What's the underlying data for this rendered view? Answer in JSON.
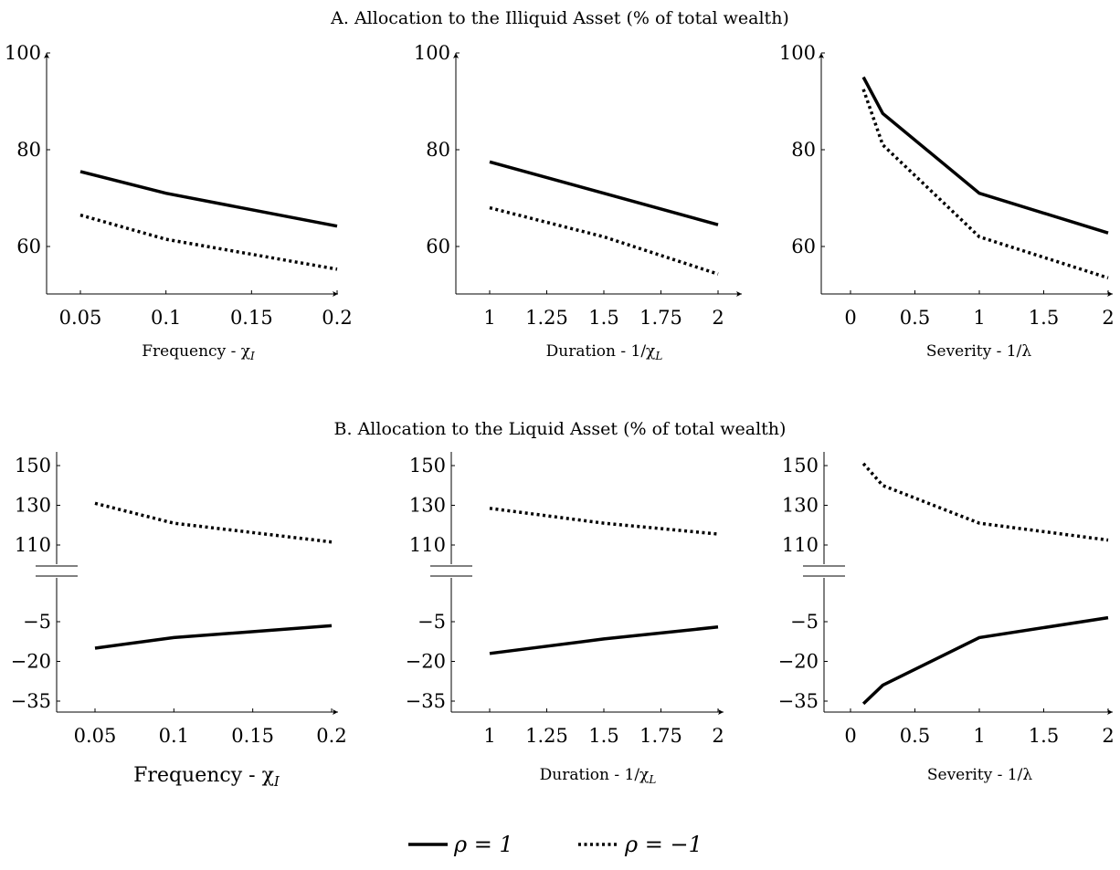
{
  "panels": {
    "A": {
      "title": "A. Allocation to the Illiquid Asset (% of total wealth)"
    },
    "B": {
      "title": "B. Allocation to the Liquid Asset (% of total wealth)"
    }
  },
  "legend": {
    "solid_label": "ρ = 1",
    "dotted_label": "ρ = −1"
  },
  "colors": {
    "line": "#000000",
    "background": "#ffffff"
  },
  "chart_data": [
    {
      "type": "line",
      "panel": "A",
      "xlabel": "Frequency - χI",
      "xlim": [
        0.05,
        0.2
      ],
      "ylim": [
        50,
        100
      ],
      "xticks": [
        0.05,
        0.1,
        0.15,
        0.2
      ],
      "xtick_labels": [
        "0.05",
        "0.1",
        "0.15",
        "0.2"
      ],
      "yticks": [
        60,
        80,
        100
      ],
      "ytick_labels": [
        "60",
        "80",
        "100"
      ],
      "series": [
        {
          "name": "ρ = 1",
          "style": "solid",
          "x": [
            0.05,
            0.1,
            0.2
          ],
          "y": [
            75.5,
            71,
            64.2
          ]
        },
        {
          "name": "ρ = −1",
          "style": "dotted",
          "x": [
            0.05,
            0.1,
            0.2
          ],
          "y": [
            66.5,
            61.5,
            55.3
          ]
        }
      ]
    },
    {
      "type": "line",
      "panel": "A",
      "xlabel": "Duration - 1/χL",
      "xlim": [
        0.9,
        2.1
      ],
      "ylim": [
        50,
        100
      ],
      "xticks": [
        1,
        1.25,
        1.5,
        1.75,
        2
      ],
      "xtick_labels": [
        "1",
        "1.25",
        "1.5",
        "1.75",
        "2"
      ],
      "yticks": [
        60,
        80,
        100
      ],
      "ytick_labels": [
        "60",
        "80",
        "100"
      ],
      "series": [
        {
          "name": "ρ = 1",
          "style": "solid",
          "x": [
            1,
            1.5,
            2
          ],
          "y": [
            77.5,
            71,
            64.5
          ]
        },
        {
          "name": "ρ = −1",
          "style": "dotted",
          "x": [
            1,
            1.5,
            2
          ],
          "y": [
            68,
            62,
            54.3
          ]
        }
      ]
    },
    {
      "type": "line",
      "panel": "A",
      "xlabel": "Severity - 1/λ",
      "xlim": [
        0,
        2
      ],
      "ylim": [
        50,
        100
      ],
      "xticks": [
        0,
        0.5,
        1,
        1.5,
        2
      ],
      "xtick_labels": [
        "0",
        "0.5",
        "1",
        "1.5",
        "2"
      ],
      "yticks": [
        60,
        80,
        100
      ],
      "ytick_labels": [
        "60",
        "80",
        "100"
      ],
      "series": [
        {
          "name": "ρ = 1",
          "style": "solid",
          "x": [
            0.1,
            0.25,
            1,
            2
          ],
          "y": [
            95,
            87.5,
            71,
            62.8
          ]
        },
        {
          "name": "ρ = −1",
          "style": "dotted",
          "x": [
            0.1,
            0.25,
            1,
            2
          ],
          "y": [
            92.5,
            81,
            62,
            53.5
          ]
        }
      ]
    },
    {
      "type": "line",
      "panel": "B",
      "xlabel": "Frequency - χI",
      "xlim": [
        0.05,
        0.2
      ],
      "axis_break": {
        "between": [
          -5,
          110
        ]
      },
      "yticks": [
        150,
        130,
        110,
        -5,
        -20,
        -35
      ],
      "ytick_labels": [
        "150",
        "130",
        "110",
        "−5",
        "−20",
        "−35"
      ],
      "xticks": [
        0.05,
        0.1,
        0.15,
        0.2
      ],
      "xtick_labels": [
        "0.05",
        "0.1",
        "0.15",
        "0.2"
      ],
      "series": [
        {
          "name": "ρ = 1",
          "style": "solid",
          "x": [
            0.05,
            0.1,
            0.2
          ],
          "y": [
            -15,
            -11,
            -6.5
          ]
        },
        {
          "name": "ρ = −1",
          "style": "dotted",
          "x": [
            0.05,
            0.1,
            0.2
          ],
          "y": [
            131,
            121,
            111.5
          ]
        }
      ]
    },
    {
      "type": "line",
      "panel": "B",
      "xlabel": "Duration - 1/χL",
      "xlim": [
        0.9,
        2.1
      ],
      "axis_break": {
        "between": [
          -5,
          110
        ]
      },
      "yticks": [
        150,
        130,
        110,
        -5,
        -20,
        -35
      ],
      "ytick_labels": [
        "150",
        "130",
        "110",
        "−5",
        "−20",
        "−35"
      ],
      "xticks": [
        1,
        1.25,
        1.5,
        1.75,
        2
      ],
      "xtick_labels": [
        "1",
        "1.25",
        "1.5",
        "1.75",
        "2"
      ],
      "series": [
        {
          "name": "ρ = 1",
          "style": "solid",
          "x": [
            1,
            1.5,
            2
          ],
          "y": [
            -17,
            -11.5,
            -7
          ]
        },
        {
          "name": "ρ = −1",
          "style": "dotted",
          "x": [
            1,
            1.5,
            2
          ],
          "y": [
            128.5,
            121,
            115.5
          ]
        }
      ]
    },
    {
      "type": "line",
      "panel": "B",
      "xlabel": "Severity - 1/λ",
      "xlim": [
        0,
        2
      ],
      "axis_break": {
        "between": [
          -5,
          110
        ]
      },
      "yticks": [
        150,
        130,
        110,
        -5,
        -20,
        -35
      ],
      "ytick_labels": [
        "150",
        "130",
        "110",
        "−5",
        "−20",
        "−35"
      ],
      "xticks": [
        0,
        0.5,
        1,
        1.5,
        2
      ],
      "xtick_labels": [
        "0",
        "0.5",
        "1",
        "1.5",
        "2"
      ],
      "series": [
        {
          "name": "ρ = 1",
          "style": "solid",
          "x": [
            0.1,
            0.25,
            1,
            2
          ],
          "y": [
            -36,
            -29,
            -11,
            -3.5
          ]
        },
        {
          "name": "ρ = −1",
          "style": "dotted",
          "x": [
            0.1,
            0.25,
            1,
            2
          ],
          "y": [
            151,
            140,
            121,
            112.5
          ]
        }
      ]
    }
  ]
}
